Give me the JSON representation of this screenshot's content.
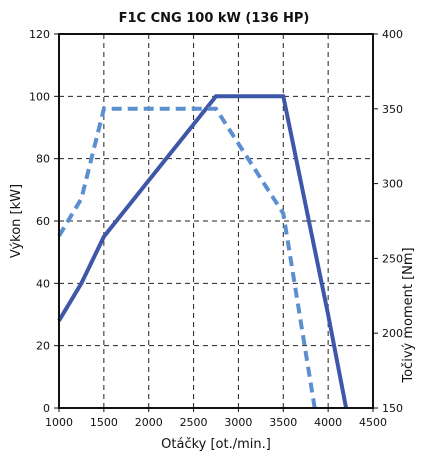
{
  "chart_data": {
    "type": "line",
    "title": "F1C CNG 100 kW (136 HP)",
    "xlabel": "Otáčky [ot./min.]",
    "ylabel": "Výkon [kW]",
    "y2label": "Točivý moment [Nm]",
    "xlim": [
      1000,
      4500
    ],
    "ylim": [
      0,
      120
    ],
    "y2lim": [
      150,
      400
    ],
    "x_ticks": [
      "1000",
      "1500",
      "2000",
      "2500",
      "3000",
      "3500",
      "4000",
      "4500"
    ],
    "y_ticks": [
      "0",
      "20",
      "40",
      "60",
      "80",
      "100",
      "120"
    ],
    "y2_ticks": [
      "150",
      "200",
      "250",
      "300",
      "350",
      "400"
    ],
    "grid": true,
    "series": [
      {
        "axis": "left",
        "color": "#3f57a8",
        "style": "solid",
        "points": [
          [
            1000,
            28
          ],
          [
            1250,
            40
          ],
          [
            1500,
            55
          ],
          [
            2000,
            73
          ],
          [
            2750,
            100
          ],
          [
            3500,
            100
          ],
          [
            4000,
            30
          ],
          [
            4200,
            0
          ]
        ]
      },
      {
        "axis": "right",
        "color": "#5b8fd0",
        "style": "dashed",
        "points": [
          [
            1000,
            265
          ],
          [
            1250,
            290
          ],
          [
            1500,
            350
          ],
          [
            2750,
            350
          ],
          [
            3500,
            280
          ],
          [
            3850,
            150
          ]
        ]
      }
    ]
  }
}
